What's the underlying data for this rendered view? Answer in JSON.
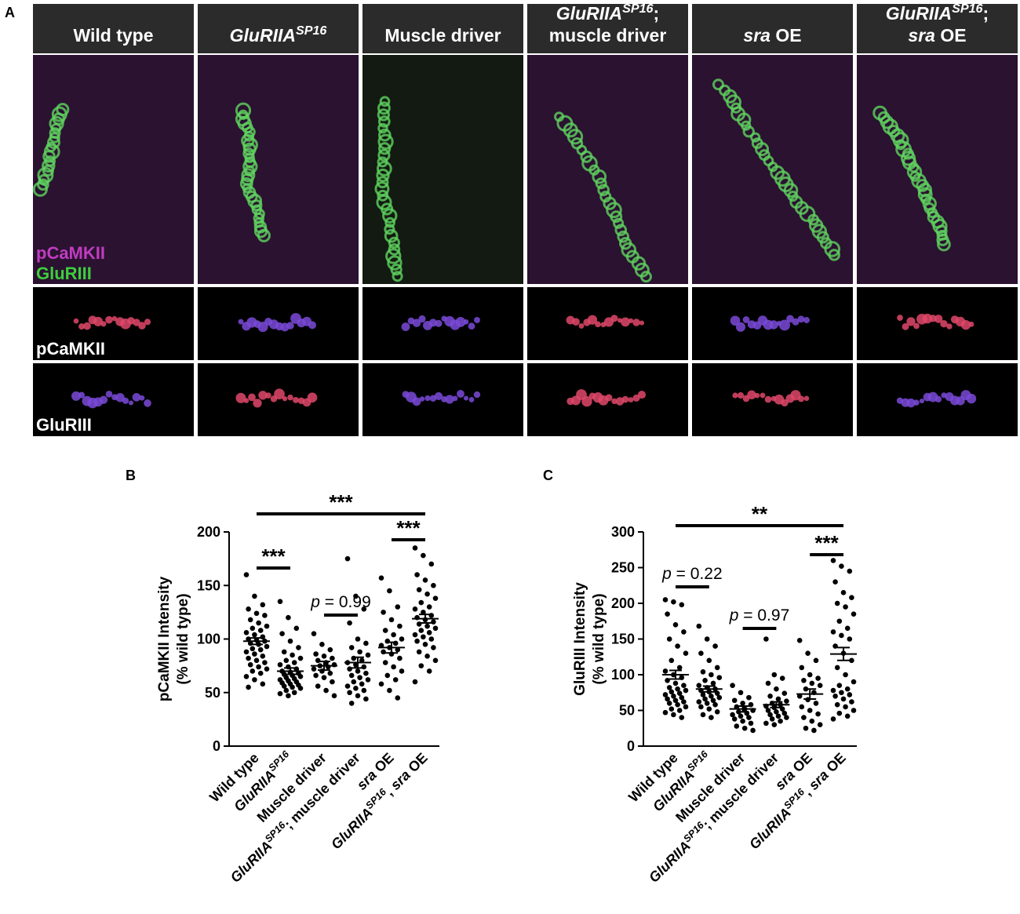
{
  "panel_a": {
    "label": "A",
    "columns": [
      [
        [
          {
            "text": "Wild type"
          }
        ]
      ],
      [
        [
          {
            "text": "GluRIIA",
            "italic": true
          },
          {
            "text": "SP16",
            "italic": true,
            "sup": true
          }
        ]
      ],
      [
        [
          {
            "text": "Muscle driver"
          }
        ]
      ],
      [
        [
          {
            "text": "GluRIIA",
            "italic": true
          },
          {
            "text": "SP16",
            "italic": true,
            "sup": true
          },
          {
            "text": ";"
          }
        ],
        [
          {
            "text": "muscle driver"
          }
        ]
      ],
      [
        [
          {
            "text": "sra",
            "italic": true
          },
          {
            "text": " OE"
          }
        ]
      ],
      [
        [
          {
            "text": "GluRIIA",
            "italic": true
          },
          {
            "text": "SP16",
            "italic": true,
            "sup": true
          },
          {
            "text": ";"
          }
        ],
        [
          {
            "text": "sra",
            "italic": true
          },
          {
            "text": " OE"
          }
        ]
      ]
    ],
    "merge_labels": [
      {
        "text": "pCaMKII",
        "color": "#c03cc0"
      },
      {
        "text": "GluRIII",
        "color": "#3ccf3c"
      }
    ],
    "row_labels": [
      "pCaMKII",
      "GluRIII"
    ]
  },
  "chart_data": [
    {
      "type": "dotplot",
      "label": "B",
      "ylabel": [
        "pCaMKII Intensity",
        "(% wild type)"
      ],
      "ylim": [
        0,
        200
      ],
      "yticks": [
        0,
        50,
        100,
        150,
        200
      ],
      "categories": [
        [
          {
            "text": "Wild type"
          }
        ],
        [
          {
            "text": "GluRIIA",
            "italic": true
          },
          {
            "text": "SP16",
            "italic": true,
            "sup": true
          }
        ],
        [
          {
            "text": "Muscle driver"
          }
        ],
        [
          {
            "text": "GluRIIA",
            "italic": true
          },
          {
            "text": "SP16",
            "italic": true,
            "sup": true
          },
          {
            "text": "; muscle driver"
          }
        ],
        [
          {
            "text": "sra",
            "italic": true
          },
          {
            "text": " OE"
          }
        ],
        [
          {
            "text": "GluRIIA",
            "italic": true
          },
          {
            "text": "SP16",
            "italic": true,
            "sup": true
          },
          {
            "text": ", "
          },
          {
            "text": "sra",
            "italic": true
          },
          {
            "text": " OE"
          }
        ]
      ],
      "groups": [
        {
          "mean": 98,
          "sem": 3,
          "values": [
            160,
            140,
            132,
            128,
            124,
            122,
            118,
            115,
            112,
            110,
            108,
            106,
            104,
            102,
            100,
            99,
            98,
            96,
            95,
            93,
            91,
            90,
            88,
            86,
            84,
            82,
            80,
            78,
            76,
            74,
            72,
            70,
            68,
            65,
            62,
            58,
            55
          ]
        },
        {
          "mean": 70,
          "sem": 3,
          "values": [
            135,
            120,
            110,
            105,
            98,
            92,
            88,
            85,
            82,
            80,
            78,
            76,
            74,
            72,
            70,
            69,
            68,
            67,
            66,
            65,
            64,
            63,
            62,
            61,
            60,
            59,
            58,
            57,
            56,
            55,
            54,
            52,
            50,
            49,
            47
          ]
        },
        {
          "mean": 75,
          "sem": 4,
          "values": [
            105,
            95,
            90,
            86,
            84,
            82,
            80,
            78,
            76,
            75,
            74,
            72,
            70,
            68,
            66,
            64,
            60,
            56,
            52,
            47
          ]
        },
        {
          "mean": 78,
          "sem": 5,
          "values": [
            175,
            140,
            128,
            115,
            100,
            96,
            92,
            88,
            85,
            82,
            80,
            78,
            76,
            74,
            72,
            70,
            68,
            66,
            64,
            62,
            60,
            58,
            56,
            54,
            52,
            50,
            47,
            44,
            40
          ]
        },
        {
          "mean": 92,
          "sem": 5,
          "values": [
            157,
            145,
            130,
            125,
            118,
            112,
            108,
            104,
            100,
            98,
            96,
            94,
            92,
            90,
            88,
            86,
            82,
            78,
            74,
            70,
            66,
            62,
            58,
            52,
            45
          ]
        },
        {
          "mean": 119,
          "sem": 4,
          "values": [
            185,
            178,
            170,
            160,
            155,
            150,
            146,
            142,
            138,
            134,
            130,
            128,
            125,
            122,
            120,
            118,
            116,
            114,
            112,
            110,
            108,
            106,
            104,
            102,
            100,
            98,
            95,
            92,
            88,
            84,
            80,
            75,
            70,
            60
          ]
        }
      ],
      "annotations": [
        [
          {
            "text": "***"
          }
        ],
        [
          {
            "text": "***"
          }
        ],
        [
          {
            "text": "p",
            "italic": true
          },
          {
            "text": " = 0.99"
          }
        ],
        [
          {
            "text": "***"
          }
        ]
      ]
    },
    {
      "type": "dotplot",
      "label": "C",
      "ylabel": [
        "GluRIII Intensity",
        "(% wild type)"
      ],
      "ylim": [
        0,
        300
      ],
      "yticks": [
        0,
        50,
        100,
        150,
        200,
        250,
        300
      ],
      "categories": [
        [
          {
            "text": "Wild type"
          }
        ],
        [
          {
            "text": "GluRIIA",
            "italic": true
          },
          {
            "text": "SP16",
            "italic": true,
            "sup": true
          }
        ],
        [
          {
            "text": "Muscle driver"
          }
        ],
        [
          {
            "text": "GluRIIA",
            "italic": true
          },
          {
            "text": "SP16",
            "italic": true,
            "sup": true
          },
          {
            "text": "; muscle driver"
          }
        ],
        [
          {
            "text": "sra",
            "italic": true
          },
          {
            "text": " OE"
          }
        ],
        [
          {
            "text": "GluRIIA",
            "italic": true
          },
          {
            "text": "SP16",
            "italic": true,
            "sup": true
          },
          {
            "text": ", "
          },
          {
            "text": "sra",
            "italic": true
          },
          {
            "text": " OE"
          }
        ]
      ],
      "groups": [
        {
          "mean": 100,
          "sem": 6,
          "values": [
            205,
            202,
            198,
            185,
            170,
            160,
            150,
            140,
            130,
            120,
            110,
            105,
            100,
            96,
            92,
            88,
            85,
            82,
            80,
            78,
            76,
            74,
            72,
            70,
            68,
            66,
            64,
            62,
            60,
            58,
            55,
            52,
            50,
            47,
            44,
            40
          ]
        },
        {
          "mean": 80,
          "sem": 4,
          "values": [
            168,
            150,
            140,
            130,
            120,
            110,
            104,
            100,
            96,
            92,
            88,
            85,
            82,
            80,
            78,
            76,
            74,
            72,
            70,
            68,
            66,
            64,
            62,
            60,
            58,
            55,
            52,
            48,
            44,
            40
          ]
        },
        {
          "mean": 52,
          "sem": 4,
          "values": [
            85,
            75,
            68,
            64,
            60,
            58,
            55,
            52,
            50,
            48,
            46,
            44,
            42,
            40,
            38,
            35,
            32,
            28,
            25,
            22
          ]
        },
        {
          "mean": 58,
          "sem": 4,
          "values": [
            150,
            100,
            95,
            88,
            80,
            74,
            70,
            66,
            63,
            60,
            58,
            56,
            54,
            52,
            50,
            48,
            46,
            44,
            42,
            40,
            38,
            35,
            32,
            30
          ]
        },
        {
          "mean": 73,
          "sem": 7,
          "values": [
            148,
            130,
            120,
            110,
            100,
            95,
            92,
            88,
            85,
            80,
            75,
            70,
            65,
            60,
            55,
            50,
            45,
            40,
            35,
            30,
            25,
            22
          ]
        },
        {
          "mean": 129,
          "sem": 9,
          "values": [
            260,
            252,
            245,
            230,
            215,
            208,
            200,
            195,
            185,
            175,
            165,
            160,
            155,
            150,
            140,
            130,
            120,
            110,
            100,
            90,
            85,
            80,
            78,
            75,
            72,
            70,
            66,
            62,
            58,
            55,
            50,
            46,
            42,
            38
          ]
        }
      ],
      "annotations": [
        [
          {
            "text": "**"
          }
        ],
        [
          {
            "text": "p",
            "italic": true
          },
          {
            "text": " = 0.22"
          }
        ],
        [
          {
            "text": "p",
            "italic": true
          },
          {
            "text": " = 0.97"
          }
        ],
        [
          {
            "text": "***"
          }
        ]
      ]
    }
  ]
}
